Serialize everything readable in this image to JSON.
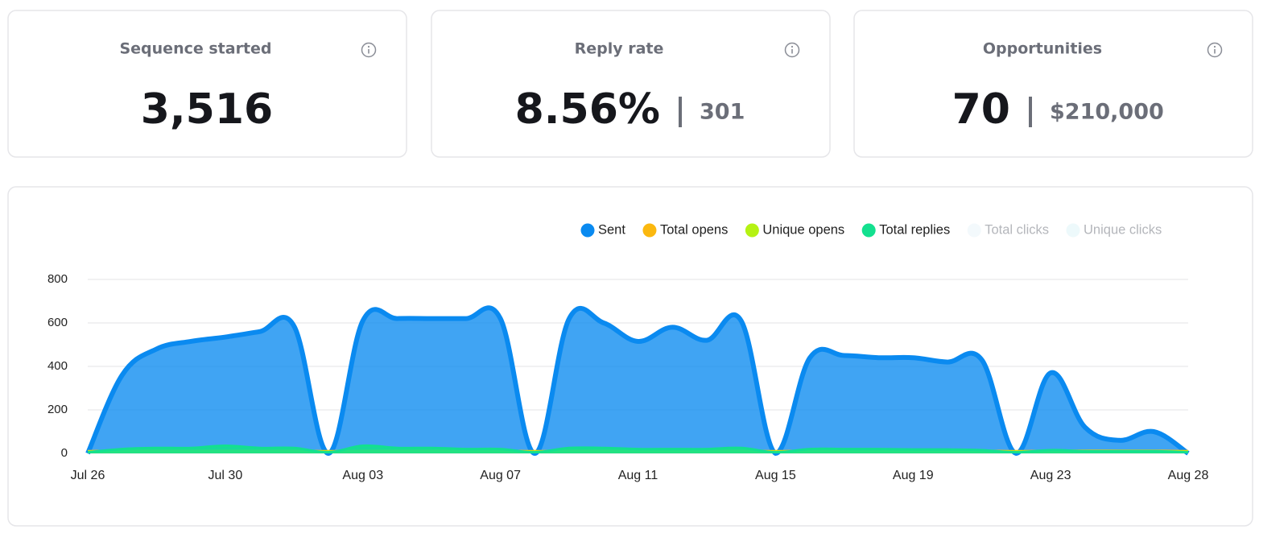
{
  "cards": [
    {
      "title": "Sequence started",
      "value": "3,516"
    },
    {
      "title": "Reply rate",
      "value": "8.56%",
      "secondary": "301"
    },
    {
      "title": "Opportunities",
      "value": "70",
      "secondary": "$210,000"
    }
  ],
  "chart_data": {
    "type": "area",
    "categories": [
      "Jul 26",
      null,
      null,
      null,
      "Jul 30",
      null,
      null,
      null,
      "Aug 03",
      null,
      null,
      null,
      "Aug 07",
      null,
      null,
      null,
      "Aug 11",
      null,
      null,
      null,
      "Aug 15",
      null,
      null,
      null,
      "Aug 19",
      null,
      null,
      null,
      "Aug 23",
      null,
      null,
      null,
      "Aug 28"
    ],
    "series": [
      {
        "name": "Sent",
        "color": "#0a8af0",
        "visible": true,
        "values": [
          0,
          360,
          480,
          515,
          535,
          560,
          585,
          0,
          610,
          620,
          620,
          620,
          620,
          0,
          620,
          600,
          515,
          580,
          520,
          610,
          0,
          440,
          450,
          440,
          440,
          420,
          430,
          0,
          370,
          120,
          60,
          100,
          0
        ]
      },
      {
        "name": "Total opens",
        "color": "#fbb80f",
        "visible": true,
        "values": [
          10,
          12,
          12,
          12,
          12,
          12,
          12,
          10,
          12,
          12,
          12,
          12,
          12,
          10,
          12,
          12,
          12,
          12,
          12,
          12,
          10,
          12,
          12,
          12,
          12,
          12,
          12,
          10,
          12,
          12,
          12,
          12,
          10
        ]
      },
      {
        "name": "Unique opens",
        "color": "#b5f213",
        "visible": true,
        "values": [
          8,
          10,
          10,
          10,
          10,
          10,
          10,
          8,
          10,
          10,
          10,
          10,
          10,
          8,
          10,
          10,
          10,
          10,
          10,
          10,
          8,
          10,
          10,
          10,
          10,
          10,
          10,
          8,
          10,
          10,
          10,
          10,
          8
        ]
      },
      {
        "name": "Total replies",
        "color": "#13e08f",
        "visible": true,
        "values": [
          5,
          20,
          25,
          25,
          35,
          25,
          25,
          5,
          35,
          25,
          25,
          20,
          20,
          5,
          25,
          25,
          20,
          20,
          20,
          25,
          5,
          20,
          20,
          20,
          18,
          18,
          15,
          5,
          15,
          10,
          10,
          10,
          5
        ]
      },
      {
        "name": "Total clicks",
        "color": "#f3f9fc",
        "visible": false
      },
      {
        "name": "Unique clicks",
        "color": "#edf9fb",
        "visible": false
      }
    ],
    "ylim": [
      0,
      800
    ],
    "yticks": [
      0,
      200,
      400,
      600,
      800
    ],
    "grid": true
  }
}
